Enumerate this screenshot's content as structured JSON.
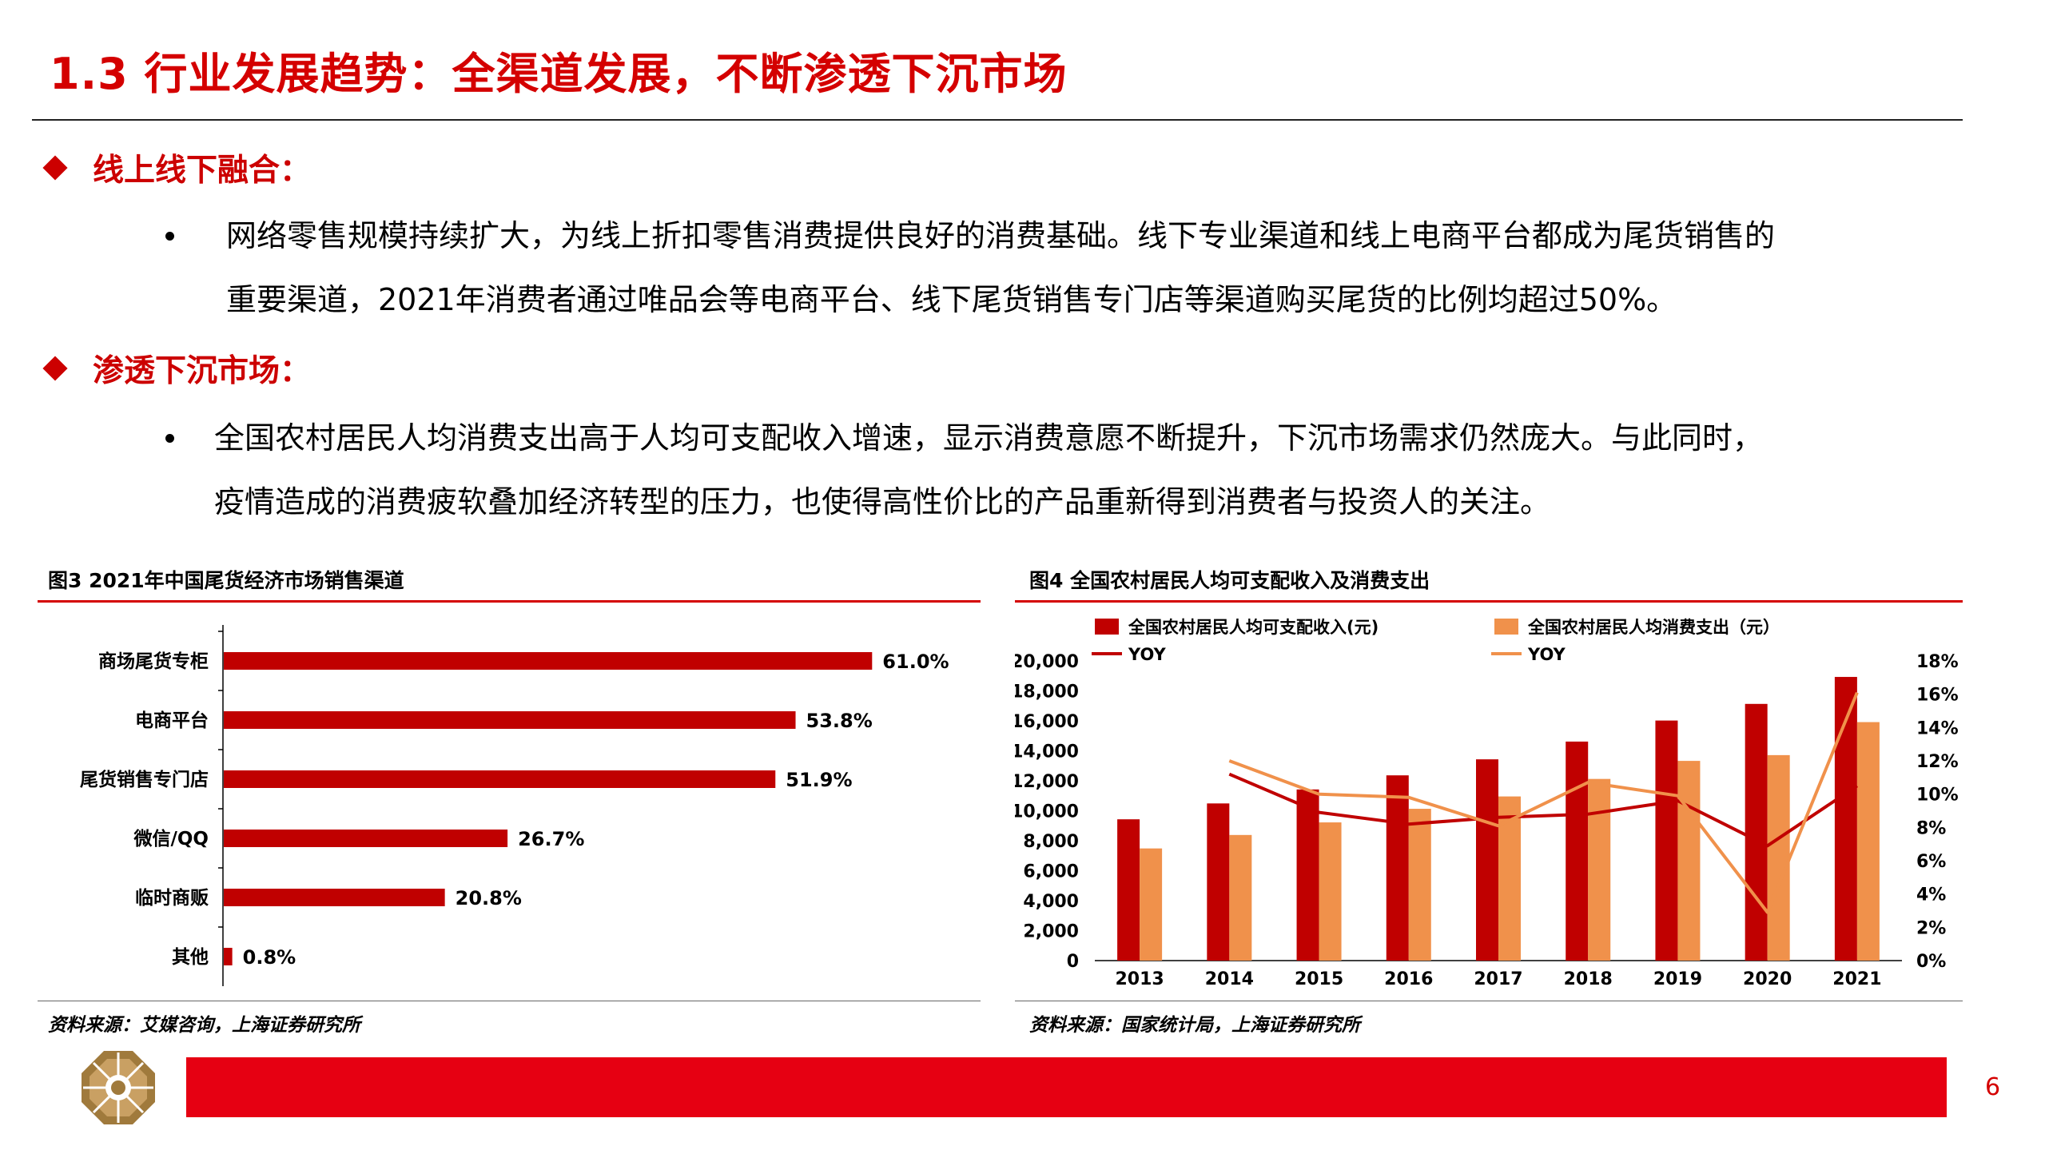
{
  "title": "1.3 行业发展趋势：全渠道发展，不断渗透下沉市场",
  "sections": [
    {
      "heading": "线上线下融合：",
      "lines": [
        "网络零售规模持续扩大，为线上折扣零售消费提供良好的消费基础。线下专业渠道和线上电商平台都成为尾货销售的",
        "重要渠道，2021年消费者通过唯品会等电商平台、线下尾货销售专门店等渠道购买尾货的比例均超过50%。"
      ]
    },
    {
      "heading": "渗透下沉市场：",
      "lines": [
        "全国农村居民人均消费支出高于人均可支配收入增速，显示消费意愿不断提升，下沉市场需求仍然庞大。与此同时，",
        "疫情造成的消费疲软叠加经济转型的压力，也使得高性价比的产品重新得到消费者与投资人的关注。"
      ]
    }
  ],
  "figures": [
    {
      "title": "图3 2021年中国尾货经济市场销售渠道",
      "source": "资料来源：艾媒咨询，上海证券研究所"
    },
    {
      "title": "图4 全国农村居民人均可支配收入及消费支出",
      "source": "资料来源：国家统计局，上海证券研究所"
    }
  ],
  "chart_data": [
    {
      "type": "bar",
      "orientation": "horizontal",
      "categories": [
        "商场尾货专柜",
        "电商平台",
        "尾货销售专门店",
        "微信/QQ",
        "临时商贩",
        "其他"
      ],
      "values": [
        61.0,
        53.8,
        51.9,
        26.7,
        20.8,
        0.8
      ],
      "value_labels": [
        "61.0%",
        "53.8%",
        "51.9%",
        "26.7%",
        "20.8%",
        "0.8%"
      ],
      "unit": "%",
      "color": "#c00000"
    },
    {
      "type": "bar",
      "categories": [
        "2013",
        "2014",
        "2015",
        "2016",
        "2017",
        "2018",
        "2019",
        "2020",
        "2021"
      ],
      "series": [
        {
          "name": "全国农村居民人均可支配收入(元)",
          "kind": "bar",
          "axis": "left",
          "color": "#c00000",
          "values": [
            9430,
            10489,
            11422,
            12363,
            13432,
            14617,
            16021,
            17131,
            18931
          ]
        },
        {
          "name": "全国农村居民人均消费支出（元）",
          "kind": "bar",
          "axis": "left",
          "color": "#f0914b",
          "values": [
            7485,
            8383,
            9223,
            10130,
            10955,
            12124,
            13328,
            13713,
            15916
          ]
        },
        {
          "name": "YOY",
          "kind": "line",
          "axis": "right",
          "color": "#c00000",
          "values": [
            null,
            11.2,
            8.9,
            8.2,
            8.6,
            8.8,
            9.6,
            6.9,
            10.5
          ]
        },
        {
          "name": "YOY",
          "kind": "line",
          "axis": "right",
          "color": "#f0914b",
          "values": [
            null,
            12.0,
            10.0,
            9.8,
            8.1,
            10.7,
            9.9,
            2.9,
            16.1
          ]
        }
      ],
      "left_axis": {
        "ticks": [
          "0",
          "2,000",
          "4,000",
          "6,000",
          "8,000",
          "10,000",
          "12,000",
          "14,000",
          "16,000",
          "18,000",
          "20,000"
        ],
        "ylim": [
          0,
          20000
        ]
      },
      "right_axis": {
        "ticks": [
          "0%",
          "2%",
          "4%",
          "6%",
          "8%",
          "10%",
          "12%",
          "14%",
          "16%",
          "18%"
        ],
        "ylim": [
          0,
          18
        ]
      },
      "legend_position": "top"
    }
  ],
  "page_number": "6",
  "colors": {
    "brand_red": "#d40000",
    "footer_red": "#e60012",
    "dark_red": "#c00000",
    "orange": "#f0914b",
    "logo_gold": "#a07a3c"
  },
  "logo": {
    "icon": "gold-octagon-logo-icon"
  }
}
